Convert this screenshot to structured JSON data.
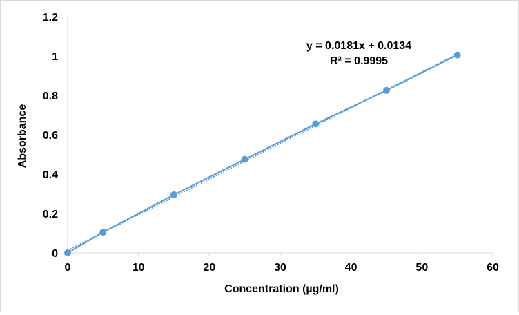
{
  "chart_data": {
    "type": "scatter",
    "xlabel": "Concentration (µg/ml)",
    "ylabel": "Absorbance",
    "xlim": [
      0,
      60
    ],
    "ylim": [
      0,
      1.2
    ],
    "x_ticks": [
      0,
      10,
      20,
      30,
      40,
      50,
      60
    ],
    "y_ticks": [
      0,
      0.2,
      0.4,
      0.6,
      0.8,
      1,
      1.2
    ],
    "x_tick_labels": [
      "0",
      "10",
      "20",
      "30",
      "40",
      "50",
      "60"
    ],
    "y_tick_labels": [
      "0",
      "0.2",
      "0.4",
      "0.6",
      "0.8",
      "1",
      "1.2"
    ],
    "grid": false,
    "series": [
      {
        "x": [
          0,
          5,
          15,
          25,
          35,
          45,
          55
        ],
        "y": [
          0,
          0.105,
          0.295,
          0.475,
          0.655,
          0.825,
          1.005
        ],
        "color": "#5b9bd5"
      }
    ],
    "trendline": {
      "slope": 0.0181,
      "intercept": 0.0134,
      "style": "dotted",
      "color": "#5b9bd5",
      "equation": "y = 0.0181x + 0.0134",
      "r_squared": "R² = 0.9995"
    }
  }
}
